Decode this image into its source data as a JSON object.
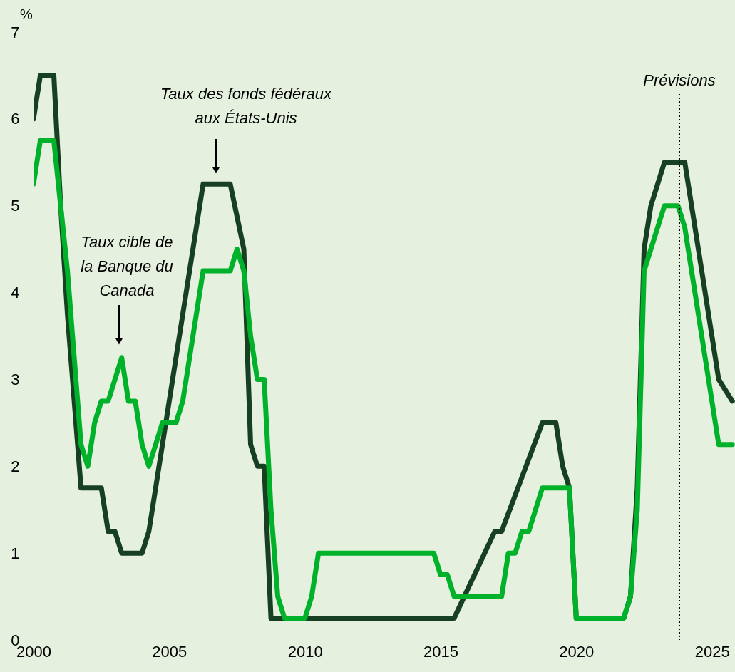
{
  "chart_data": {
    "type": "line",
    "ylabel": "%",
    "xlim": [
      2000,
      2025.85
    ],
    "xticks": [
      2000,
      2005,
      2010,
      2015,
      2020,
      2025
    ],
    "ylim": [
      0,
      7
    ],
    "yticks": [
      0,
      1,
      2,
      3,
      4,
      5,
      6,
      7
    ],
    "grid": false,
    "legend": false,
    "line_style": "solid",
    "marker": "none",
    "series": [
      {
        "color": "#173f22",
        "x": [
          2000.0,
          2000.25,
          2000.75,
          2001.0,
          2001.25,
          2001.75,
          2002.5,
          2002.75,
          2003.0,
          2003.25,
          2004.0,
          2004.25,
          2006.25,
          2007.25,
          2007.75,
          2008.0,
          2008.25,
          2008.5,
          2008.75,
          2015.5,
          2017.0,
          2017.25,
          2018.75,
          2019.25,
          2019.5,
          2019.75,
          2020.0,
          2021.75,
          2022.0,
          2022.25,
          2022.5,
          2022.75,
          2023.25,
          2024.0,
          2025.25,
          2025.75
        ],
        "values": [
          6.0,
          6.5,
          6.5,
          5.0,
          3.75,
          1.75,
          1.75,
          1.25,
          1.25,
          1.0,
          1.0,
          1.25,
          5.25,
          5.25,
          4.5,
          2.25,
          2.0,
          2.0,
          0.25,
          0.25,
          1.25,
          1.25,
          2.5,
          2.5,
          2.0,
          1.75,
          0.25,
          0.25,
          0.5,
          1.75,
          4.5,
          5.0,
          5.5,
          5.5,
          3.0,
          2.75
        ]
      },
      {
        "color": "#00b22a",
        "x": [
          2000.0,
          2000.25,
          2000.75,
          2001.0,
          2001.25,
          2001.75,
          2002.0,
          2002.25,
          2002.5,
          2002.75,
          2003.25,
          2003.5,
          2003.75,
          2004.0,
          2004.25,
          2004.75,
          2005.25,
          2005.5,
          2006.25,
          2007.25,
          2007.5,
          2007.75,
          2008.0,
          2008.25,
          2008.5,
          2008.75,
          2009.0,
          2009.25,
          2010.0,
          2010.25,
          2010.5,
          2014.75,
          2015.0,
          2015.25,
          2015.5,
          2017.25,
          2017.5,
          2017.75,
          2018.0,
          2018.25,
          2018.75,
          2019.75,
          2020.0,
          2021.75,
          2022.0,
          2022.25,
          2022.5,
          2023.25,
          2023.75,
          2024.0,
          2025.25,
          2025.75
        ],
        "values": [
          5.25,
          5.75,
          5.75,
          5.0,
          4.25,
          2.25,
          2.0,
          2.5,
          2.75,
          2.75,
          3.25,
          2.75,
          2.75,
          2.25,
          2.0,
          2.5,
          2.5,
          2.75,
          4.25,
          4.25,
          4.5,
          4.25,
          3.5,
          3.0,
          3.0,
          1.5,
          0.5,
          0.25,
          0.25,
          0.5,
          1.0,
          1.0,
          0.75,
          0.75,
          0.5,
          0.5,
          1.0,
          1.0,
          1.25,
          1.25,
          1.75,
          1.75,
          0.25,
          0.25,
          0.5,
          1.5,
          4.25,
          5.0,
          5.0,
          4.75,
          2.25,
          2.25
        ]
      }
    ],
    "ref_lines": [
      {
        "axis": "x",
        "value": 2023.8,
        "label": "Prévisions",
        "line_style": "dotted",
        "color": "#000000"
      }
    ],
    "annotations": [
      "Taux des fonds fédéraux\naux États-Unis",
      "Taux cible de\nla Banque du\nCanada"
    ]
  }
}
